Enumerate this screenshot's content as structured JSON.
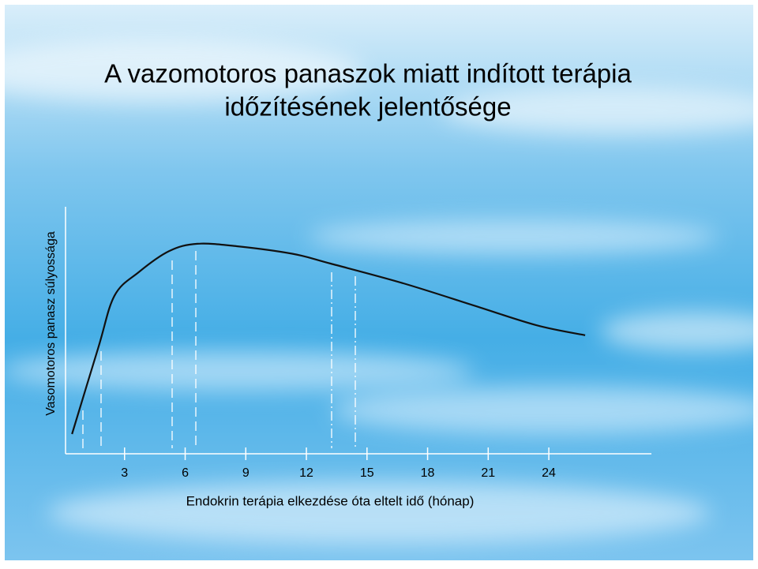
{
  "chart_data": {
    "type": "line",
    "title": [
      "A vazomotoros panaszok miatt indított terápia",
      "időzítésének jelentősége"
    ],
    "y_label": "Vasomotoros panasz súlyossága",
    "x_label": "Endokrin terápia elkezdése óta eltelt idő (hónap)",
    "xlim": [
      0,
      29
    ],
    "xticks": [
      3,
      6,
      9,
      12,
      15,
      18,
      21,
      24
    ],
    "ylim": [
      0,
      100
    ],
    "color": "#111111",
    "x": [
      0.4,
      1.7,
      2.5,
      3.7,
      5.2,
      6.6,
      8.6,
      11.3,
      13.2,
      16.8,
      20.3,
      23.4,
      25.8
    ],
    "values": [
      8,
      43,
      64,
      73.5,
      82,
      85,
      84,
      81,
      77,
      69,
      60,
      52,
      48
    ]
  }
}
